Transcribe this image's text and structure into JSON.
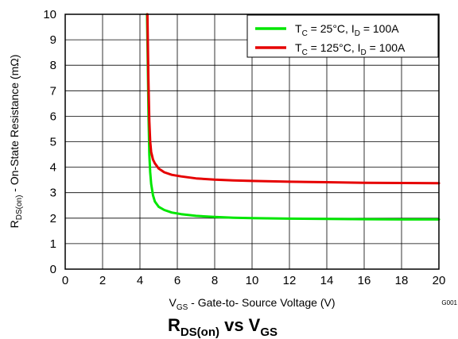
{
  "chart_data": {
    "type": "line",
    "title": {
      "main": "R",
      "sub1": "DS(on)",
      "mid": " vs V",
      "sub2": "GS"
    },
    "figure_code": "G001",
    "xlabel": {
      "main": "V",
      "sub": "GS",
      "rest": " - Gate-to- Source Voltage (V)"
    },
    "ylabel": {
      "main": "R",
      "sub": "DS(on)",
      "rest": " - On-State Resistance  (mΩ)"
    },
    "xlim": [
      0,
      20
    ],
    "ylim": [
      0,
      10
    ],
    "xticks": [
      0,
      2,
      4,
      6,
      8,
      10,
      12,
      14,
      16,
      18,
      20
    ],
    "yticks": [
      0,
      1,
      2,
      3,
      4,
      5,
      6,
      7,
      8,
      9,
      10
    ],
    "grid": true,
    "legend_position": "top-right",
    "series": [
      {
        "legend": {
          "p1": "T",
          "s1": "C",
          "p2": " = 25°C, I",
          "s2": "D",
          "p3": " = 100A"
        },
        "color": "#00e600",
        "x": [
          4.38,
          4.42,
          4.46,
          4.5,
          4.55,
          4.6,
          4.7,
          4.8,
          5.0,
          5.3,
          5.7,
          6.2,
          7.0,
          8.0,
          9.0,
          10.0,
          12.0,
          14.0,
          16.0,
          18.0,
          20.0
        ],
        "y": [
          10.0,
          8.0,
          6.0,
          4.5,
          3.8,
          3.35,
          2.9,
          2.65,
          2.45,
          2.32,
          2.22,
          2.16,
          2.09,
          2.05,
          2.02,
          2.0,
          1.98,
          1.97,
          1.96,
          1.95,
          1.95
        ]
      },
      {
        "legend": {
          "p1": "T",
          "s1": "C",
          "p2": " = 125°C, I",
          "s2": "D",
          "p3": " = 100A"
        },
        "color": "#e60000",
        "x": [
          4.4,
          4.45,
          4.5,
          4.55,
          4.6,
          4.7,
          4.8,
          5.0,
          5.3,
          5.7,
          6.2,
          7.0,
          8.0,
          9.0,
          10.0,
          12.0,
          14.0,
          16.0,
          18.0,
          20.0
        ],
        "y": [
          10.0,
          7.5,
          5.8,
          5.0,
          4.6,
          4.3,
          4.15,
          3.95,
          3.8,
          3.7,
          3.64,
          3.56,
          3.51,
          3.48,
          3.46,
          3.43,
          3.41,
          3.39,
          3.38,
          3.37
        ]
      }
    ]
  }
}
